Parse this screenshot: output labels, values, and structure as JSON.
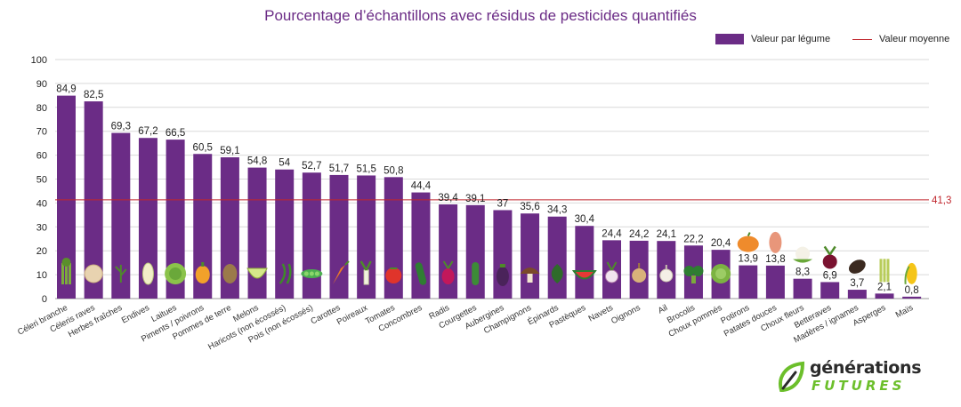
{
  "chart_data": {
    "type": "bar",
    "title": "Pourcentage d’échantillons avec résidus de pesticides quantifiés",
    "categories": [
      "Céleri branche",
      "Céleris raves",
      "Herbes fraîches",
      "Endives",
      "Laitues",
      "Piments / poivrons",
      "Pommes de terre",
      "Melons",
      "Haricots (non écossés)",
      "Pois (non écossés)",
      "Carottes",
      "Poireaux",
      "Tomates",
      "Concombres",
      "Radis",
      "Courgettes",
      "Aubergines",
      "Champignons",
      "Épinards",
      "Pastèques",
      "Navets",
      "Oignons",
      "Ail",
      "Brocolis",
      "Choux pommés",
      "Potirons",
      "Patates douces",
      "Choux fleurs",
      "Betteraves",
      "Madères / ignames",
      "Asperges",
      "Maïs"
    ],
    "series": [
      {
        "name": "Valeur par légume",
        "values": [
          84.9,
          82.5,
          69.3,
          67.2,
          66.5,
          60.5,
          59.1,
          54.8,
          54,
          52.7,
          51.7,
          51.5,
          50.8,
          44.4,
          39.4,
          39.1,
          37,
          35.6,
          34.3,
          30.4,
          24.4,
          24.2,
          24.1,
          22.2,
          20.4,
          13.9,
          13.8,
          8.3,
          6.9,
          3.7,
          2.1,
          0.8
        ],
        "labels": [
          "84,9",
          "82,5",
          "69,3",
          "67,2",
          "66,5",
          "60,5",
          "59,1",
          "54,8",
          "54",
          "52,7",
          "51,7",
          "51,5",
          "50,8",
          "44,4",
          "39,4",
          "39,1",
          "37",
          "35,6",
          "34,3",
          "30,4",
          "24,4",
          "24,2",
          "24,1",
          "22,2",
          "20,4",
          "13,9",
          "13,8",
          "8,3",
          "6,9",
          "3,7",
          "2,1",
          "0,8"
        ],
        "color": "#6b2c86"
      }
    ],
    "reference_line": {
      "name": "Valeur moyenne",
      "value": 41.3,
      "label": "41,3",
      "color": "#c0262d"
    },
    "y_ticks": [
      "0",
      "10",
      "20",
      "30",
      "40",
      "50",
      "60",
      "70",
      "80",
      "90",
      "100"
    ],
    "ylim": [
      0,
      100
    ],
    "grid": true,
    "legend_position": "top-right",
    "vegetable_icons": [
      "celery-icon",
      "celeriac-icon",
      "herbs-icon",
      "endive-icon",
      "lettuce-icon",
      "pepper-icon",
      "potato-icon",
      "melon-icon",
      "green-bean-icon",
      "pea-pod-icon",
      "carrot-icon",
      "leek-icon",
      "tomato-icon",
      "cucumber-icon",
      "radish-icon",
      "zucchini-icon",
      "eggplant-icon",
      "mushroom-icon",
      "spinach-icon",
      "watermelon-icon",
      "turnip-icon",
      "onion-icon",
      "garlic-icon",
      "broccoli-icon",
      "cabbage-icon",
      "pumpkin-icon",
      "sweet-potato-icon",
      "cauliflower-icon",
      "beetroot-icon",
      "yam-icon",
      "asparagus-icon",
      "corn-icon"
    ]
  },
  "legend": {
    "bar_label": "Valeur par légume",
    "line_label": "Valeur moyenne"
  },
  "logo": {
    "name": "générations",
    "sub": "FUTURES",
    "icon": "leaf-logo-icon",
    "accent": "#6cbf2b"
  }
}
